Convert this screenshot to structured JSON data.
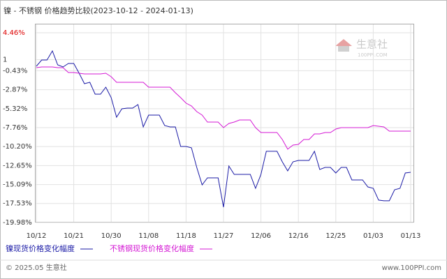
{
  "chart_data": {
    "type": "line",
    "title": "镍 - 不锈钢 价格趋势比较(2023-10-12 - 2024-01-13)",
    "categories": [
      "10/12",
      null,
      null,
      null,
      null,
      null,
      null,
      "10/21",
      null,
      null,
      null,
      null,
      null,
      null,
      "10/30",
      null,
      null,
      null,
      null,
      null,
      null,
      "11/08",
      null,
      null,
      null,
      null,
      null,
      null,
      "11/18",
      null,
      null,
      null,
      null,
      null,
      null,
      "11/27",
      null,
      null,
      null,
      null,
      null,
      null,
      "12/06",
      null,
      null,
      null,
      null,
      null,
      null,
      "12/16",
      null,
      null,
      null,
      null,
      null,
      null,
      "12/25",
      null,
      null,
      null,
      null,
      null,
      null,
      "01/03",
      null,
      null,
      null,
      null,
      null,
      null,
      "01/13"
    ],
    "series": [
      {
        "name": "镍现货价格变化幅度",
        "color": "#1a1aa6",
        "values": [
          0.15,
          0.96,
          0.96,
          2.12,
          0.33,
          0.06,
          0.51,
          0.51,
          -0.75,
          -2.1,
          -1.92,
          -3.45,
          -3.45,
          -2.55,
          -3.9,
          -6.41,
          -5.33,
          -5.24,
          -5.24,
          -4.79,
          -7.67,
          -6.14,
          -6.14,
          -6.14,
          -7.49,
          -7.67,
          -7.67,
          -10.19,
          -10.19,
          -10.36,
          -12.88,
          -15.13,
          -14.23,
          -14.23,
          -14.23,
          -18.0,
          -12.7,
          -13.78,
          -13.78,
          -13.78,
          -13.78,
          -15.58,
          -13.78,
          -10.81,
          -10.81,
          -10.81,
          -12.16,
          -13.33,
          -12.16,
          -11.98,
          -11.98,
          -11.98,
          -10.81,
          -13.15,
          -12.88,
          -12.88,
          -13.6,
          -12.88,
          -12.88,
          -14.5,
          -14.5,
          -14.5,
          -15.4,
          -15.58,
          -17.1,
          -17.19,
          -17.19,
          -15.76,
          -15.58,
          -13.6,
          -13.51
        ]
      },
      {
        "name": "不锈钢现货价格变化幅度",
        "color": "#d418d4",
        "values": [
          -0.03,
          0.06,
          0.06,
          0.06,
          -0.03,
          -0.03,
          -0.66,
          -0.66,
          -0.75,
          -0.84,
          -0.84,
          -0.84,
          -0.84,
          -0.75,
          -1.2,
          -1.92,
          -1.92,
          -1.92,
          -1.92,
          -1.92,
          -1.92,
          -2.55,
          -2.55,
          -2.55,
          -2.55,
          -2.55,
          -3.27,
          -3.9,
          -4.61,
          -4.97,
          -5.69,
          -6.14,
          -7.04,
          -7.04,
          -7.04,
          -7.76,
          -7.22,
          -7.04,
          -6.77,
          -6.77,
          -6.77,
          -7.76,
          -8.39,
          -8.39,
          -8.39,
          -8.39,
          -9.29,
          -10.54,
          -10.01,
          -9.92,
          -9.29,
          -9.29,
          -8.57,
          -8.57,
          -8.39,
          -8.39,
          -7.94,
          -7.76,
          -7.76,
          -7.76,
          -7.76,
          -7.76,
          -7.76,
          -7.49,
          -7.58,
          -7.67,
          -8.21,
          -8.21,
          -8.21,
          -8.21,
          -8.21
        ]
      }
    ],
    "ylim": [
      -19.98,
      4.46
    ],
    "yticks": [
      {
        "value": 4.46,
        "label": "4.46%"
      },
      1,
      {
        "value": -0.43,
        "label": "-0.43%"
      },
      {
        "value": -2.87,
        "label": "-2.87%"
      },
      {
        "value": -5.32,
        "label": "-5.32%"
      },
      {
        "value": -7.76,
        "label": "-7.76%"
      },
      {
        "value": -10.2,
        "label": "-10.20%"
      },
      {
        "value": -12.65,
        "label": "-12.65%"
      },
      {
        "value": -15.09,
        "label": "-15.09%"
      },
      {
        "value": -17.53,
        "label": "-17.53%"
      },
      {
        "value": -19.98,
        "label": "-19.98%"
      }
    ],
    "grid": true,
    "watermark": {
      "name": "生意社",
      "url": "100PPI.COM"
    },
    "footer": {
      "copyright": "© 2025.05 生意社",
      "site": "www.100PPI.com"
    }
  }
}
